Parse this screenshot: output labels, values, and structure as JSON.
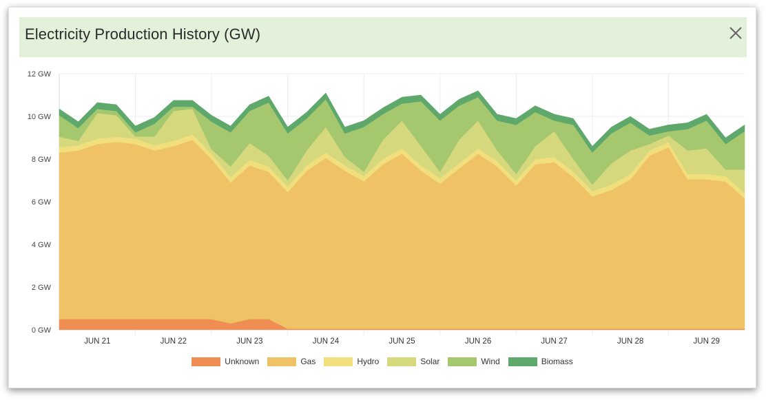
{
  "header": {
    "title": "Electricity Production History (GW)",
    "close_icon": "close-icon"
  },
  "colors": {
    "Unknown": "#ef8d52",
    "Gas": "#efc266",
    "Hydro": "#f1df7e",
    "Solar": "#d5d87c",
    "Wind": "#a5c76e",
    "Biomass": "#5fa86b"
  },
  "chart_data": {
    "type": "area",
    "stacked": true,
    "title": "Electricity Production History (GW)",
    "ylim": [
      0,
      12
    ],
    "y_ticks": [
      "0 GW",
      "2 GW",
      "4 GW",
      "6 GW",
      "8 GW",
      "10 GW",
      "12 GW"
    ],
    "xlim": [
      0,
      9
    ],
    "x_ticks": [
      {
        "x": 0.5,
        "label": "JUN 21"
      },
      {
        "x": 1.5,
        "label": "JUN 22"
      },
      {
        "x": 2.5,
        "label": "JUN 23"
      },
      {
        "x": 3.5,
        "label": "JUN 24"
      },
      {
        "x": 4.5,
        "label": "JUN 25"
      },
      {
        "x": 5.5,
        "label": "JUN 26"
      },
      {
        "x": 6.5,
        "label": "JUN 27"
      },
      {
        "x": 7.5,
        "label": "JUN 28"
      },
      {
        "x": 8.5,
        "label": "JUN 29"
      }
    ],
    "grid": true,
    "legend_position": "bottom",
    "x": [
      0,
      0.25,
      0.5,
      0.75,
      1,
      1.25,
      1.5,
      1.75,
      2,
      2.25,
      2.5,
      2.75,
      3,
      3.25,
      3.5,
      3.75,
      4,
      4.25,
      4.5,
      4.75,
      5,
      5.25,
      5.5,
      5.75,
      6,
      6.25,
      6.5,
      6.75,
      7,
      7.25,
      7.5,
      7.75,
      8,
      8.25,
      8.5,
      8.75,
      9
    ],
    "series": [
      {
        "name": "Unknown",
        "values": [
          0.5,
          0.5,
          0.5,
          0.5,
          0.5,
          0.5,
          0.5,
          0.5,
          0.5,
          0.3,
          0.5,
          0.5,
          0.05,
          0.05,
          0.05,
          0.05,
          0.05,
          0.05,
          0.05,
          0.05,
          0.05,
          0.05,
          0.05,
          0.05,
          0.05,
          0.05,
          0.05,
          0.05,
          0.05,
          0.05,
          0.05,
          0.05,
          0.05,
          0.05,
          0.05,
          0.05,
          0.05
        ]
      },
      {
        "name": "Gas",
        "values": [
          7.8,
          7.9,
          8.2,
          8.3,
          8.2,
          7.9,
          8.1,
          8.4,
          7.5,
          6.6,
          7.2,
          6.9,
          6.4,
          7.4,
          8.0,
          7.4,
          6.9,
          7.7,
          8.2,
          7.4,
          6.8,
          7.5,
          8.2,
          7.6,
          6.7,
          7.7,
          7.8,
          7.1,
          6.2,
          6.5,
          7.0,
          8.1,
          8.5,
          7.0,
          7.0,
          6.9,
          6.1
        ]
      },
      {
        "name": "Hydro",
        "values": [
          0.25,
          0.25,
          0.25,
          0.25,
          0.25,
          0.25,
          0.25,
          0.25,
          0.25,
          0.25,
          0.25,
          0.25,
          0.25,
          0.25,
          0.25,
          0.25,
          0.25,
          0.25,
          0.25,
          0.25,
          0.25,
          0.25,
          0.25,
          0.25,
          0.25,
          0.25,
          0.25,
          0.25,
          0.25,
          0.25,
          0.25,
          0.25,
          0.25,
          0.25,
          0.25,
          0.25,
          0.25
        ]
      },
      {
        "name": "Solar",
        "values": [
          0.5,
          0.2,
          1.2,
          1.0,
          0.1,
          0.4,
          1.4,
          1.2,
          0.2,
          0.5,
          0.8,
          0.5,
          0.3,
          0.7,
          1.2,
          0.4,
          0.2,
          0.9,
          1.3,
          0.9,
          0.3,
          1.1,
          1.3,
          0.5,
          0.3,
          0.6,
          1.2,
          0.6,
          0.3,
          1.0,
          1.1,
          0.3,
          0.3,
          1.1,
          1.2,
          0.3,
          1.1
        ]
      },
      {
        "name": "Wind",
        "values": [
          1.0,
          0.6,
          0.2,
          0.2,
          0.2,
          0.6,
          0.2,
          0.1,
          1.3,
          1.6,
          1.5,
          2.5,
          2.2,
          1.5,
          1.3,
          1.1,
          2.1,
          1.2,
          0.8,
          2.1,
          2.4,
          1.6,
          1.1,
          1.4,
          2.3,
          1.6,
          0.5,
          1.6,
          1.5,
          1.4,
          1.3,
          0.4,
          0.2,
          1.0,
          1.3,
          1.2,
          1.8
        ]
      },
      {
        "name": "Biomass",
        "values": [
          0.3,
          0.3,
          0.3,
          0.3,
          0.3,
          0.3,
          0.3,
          0.3,
          0.3,
          0.3,
          0.3,
          0.3,
          0.3,
          0.3,
          0.3,
          0.3,
          0.3,
          0.3,
          0.3,
          0.3,
          0.3,
          0.3,
          0.3,
          0.3,
          0.3,
          0.3,
          0.3,
          0.3,
          0.3,
          0.3,
          0.3,
          0.3,
          0.3,
          0.3,
          0.3,
          0.3,
          0.3
        ]
      }
    ]
  }
}
